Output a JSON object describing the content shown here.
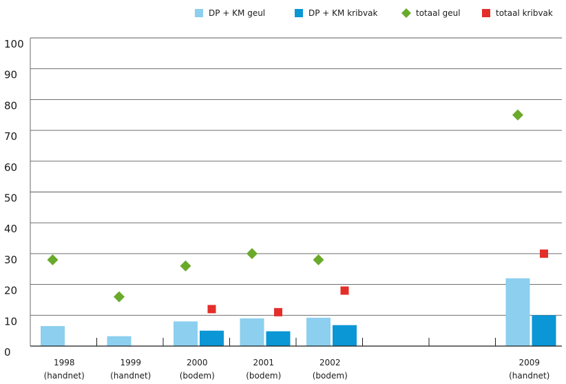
{
  "chart_data": {
    "type": "bar",
    "categories": [
      [
        "1998",
        "(handnet)"
      ],
      [
        "1999",
        "(handnet)"
      ],
      [
        "2000",
        "(bodem)"
      ],
      [
        "2001",
        "(bodem)"
      ],
      [
        "2002",
        "(bodem)"
      ],
      [
        "",
        ""
      ],
      [
        "",
        ""
      ],
      [
        "2009",
        "(handnet)"
      ]
    ],
    "series": [
      {
        "name": "DP + KM geul",
        "kind": "bar",
        "color": "#8ccfee",
        "values": [
          6.5,
          3.2,
          8.0,
          9.0,
          9.2,
          null,
          null,
          22.0
        ]
      },
      {
        "name": "DP + KM kribvak",
        "kind": "bar",
        "color": "#0b96d6",
        "values": [
          null,
          null,
          5.0,
          4.8,
          6.8,
          null,
          null,
          10.0
        ]
      },
      {
        "name": "totaal geul",
        "kind": "marker",
        "marker": "diamond",
        "color": "#6aaa2a",
        "values": [
          28,
          16,
          26,
          30,
          28,
          null,
          null,
          75
        ]
      },
      {
        "name": "totaal kribvak",
        "kind": "marker",
        "marker": "square",
        "color": "#e42e2a",
        "values": [
          null,
          null,
          12,
          11,
          18,
          null,
          null,
          30
        ]
      }
    ],
    "ylim": [
      0,
      100
    ],
    "yticks": [
      "0",
      "10",
      "20",
      "30",
      "40",
      "50",
      "60",
      "70",
      "80",
      "90",
      "100"
    ],
    "grid": true,
    "legend_position": "top-right",
    "title": "",
    "xlabel": "",
    "ylabel": ""
  }
}
